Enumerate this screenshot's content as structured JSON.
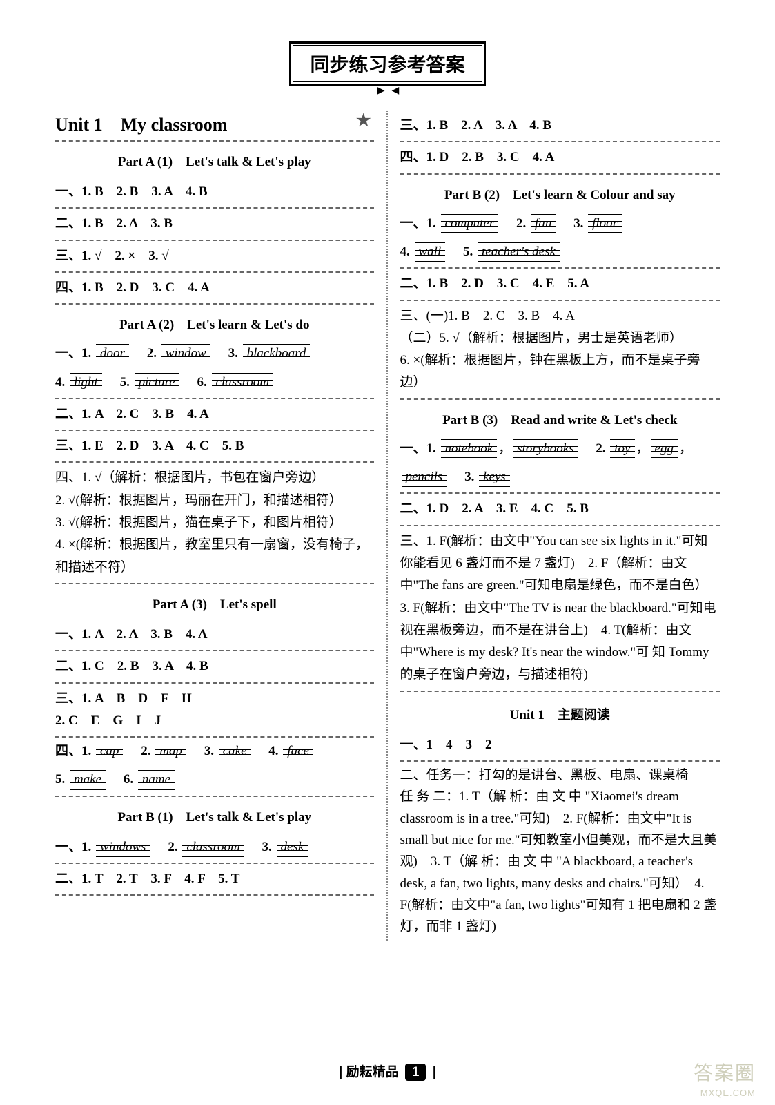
{
  "title": "同步练习参考答案",
  "unit_title": "Unit 1　My classroom",
  "left": {
    "partA1": {
      "title": "Part A (1)　Let's talk & Let's play",
      "rows": [
        "一、1. B　2. B　3. A　4. B",
        "二、1. B　2. A　3. B",
        "三、1. √　2. ×　3. √",
        "四、1. B　2. D　3. C　4. A"
      ]
    },
    "partA2": {
      "title": "Part A (2)　Let's learn & Let's do",
      "words1": {
        "p1": "一、1.",
        "w1": "door",
        "p2": "2.",
        "w2": "window",
        "p3": "3.",
        "w3": "blackboard"
      },
      "words2": {
        "p4": "4.",
        "w4": "light",
        "p5": "5.",
        "w5": "picture",
        "p6": "6.",
        "w6": "classroom"
      },
      "rows": [
        "二、1. A　2. C　3. B　4. A",
        "三、1. E　2. D　3. A　4. C　5. B"
      ],
      "four": "四、1. √（解析：根据图片，书包在窗户旁边）\n2. √(解析：根据图片，玛丽在开门，和描述相符）\n3. √(解析：根据图片，猫在桌子下，和图片相符）\n4. ×(解析：根据图片，教室里只有一扇窗，没有椅子，和描述不符）"
    },
    "partA3": {
      "title": "Part A (3)　Let's spell",
      "rows": [
        "一、1. A　2. A　3. B　4. A",
        "二、1. C　2. B　3. A　4. B",
        "三、1. A　B　D　F　H\n2. C　E　G　I　J"
      ],
      "words1": {
        "p1": "四、1.",
        "w1": "cap",
        "p2": "2.",
        "w2": "map",
        "p3": "3.",
        "w3": "cake",
        "p4": "4.",
        "w4": "face"
      },
      "words2": {
        "p5": "5.",
        "w5": "make",
        "p6": "6.",
        "w6": "name"
      }
    },
    "partB1": {
      "title": "Part B (1)　Let's talk & Let's play",
      "words1": {
        "p1": "一、1.",
        "w1": "windows",
        "p2": "2.",
        "w2": "classroom",
        "p3": "3.",
        "w3": "desk"
      },
      "rows": [
        "二、1. T　2. T　3. F　4. F　5. T"
      ]
    }
  },
  "right": {
    "pre": [
      "三、1. B　2. A　3. A　4. B",
      "四、1. D　2. B　3. C　4. A"
    ],
    "partB2": {
      "title": "Part B (2)　Let's learn & Colour and say",
      "words1": {
        "p1": "一、1.",
        "w1": "computer",
        "p2": "2.",
        "w2": "fan",
        "p3": "3.",
        "w3": "floor"
      },
      "words2": {
        "p4": "4.",
        "w4": "wall",
        "p5": "5.",
        "w5": "teacher's desk"
      },
      "rows": [
        "二、1. B　2. D　3. C　4. E　5. A"
      ],
      "three": "三、(一)1. B　2. C　3. B　4. A\n（二）5. √（解析：根据图片，男士是英语老师）\n6. ×(解析：根据图片，钟在黑板上方，而不是桌子旁边）"
    },
    "partB3": {
      "title": "Part B (3)　Read and write & Let's check",
      "words1": {
        "p1": "一、1.",
        "w1": "notebook",
        "c1": "，",
        "w1b": "storybooks",
        "p2": "2.",
        "w2": "toy",
        "c2": "，",
        "w2b": "egg",
        "c3": "，"
      },
      "words2": {
        "w3": "pencils",
        "p3": "3.",
        "w4": "keys"
      },
      "rows": [
        "二、1. D　2. A　3. E　4. C　5. B"
      ],
      "three": "三、1. F(解析：由文中\"You can see six lights in it.\"可知你能看见 6 盏灯而不是 7 盏灯)　2. F（解析：由文中\"The fans are green.\"可知电扇是绿色，而不是白色）　3. F(解析：由文中\"The TV is near the blackboard.\"可知电视在黑板旁边，而不是在讲台上)　4. T(解析：由文中\"Where is my desk? It's near the window.\"可 知 Tommy 的桌子在窗户旁边，与描述相符)"
    },
    "reading": {
      "title": "Unit 1　主题阅读",
      "rows": [
        "一、1　4　3　2"
      ],
      "two": "二、任务一：打勾的是讲台、黑板、电扇、课桌椅\n任 务 二：1. T（解 析：由 文 中 \"Xiaomei's dream classroom is in a tree.\"可知)　2. F(解析：由文中\"It is small but nice for me.\"可知教室小但美观，而不是大且美观)　3. T（解 析：由 文 中 \"A blackboard, a teacher's desk, a fan, two lights, many desks and chairs.\"可知）　4. F(解析：由文中\"a fan, two lights\"可知有 1 把电扇和 2 盏灯，而非 1 盏灯)"
    }
  },
  "footer": {
    "brand": "励耘精品",
    "page": "1"
  },
  "watermark": {
    "main": "答案圈",
    "sub": "MXQE.COM"
  }
}
